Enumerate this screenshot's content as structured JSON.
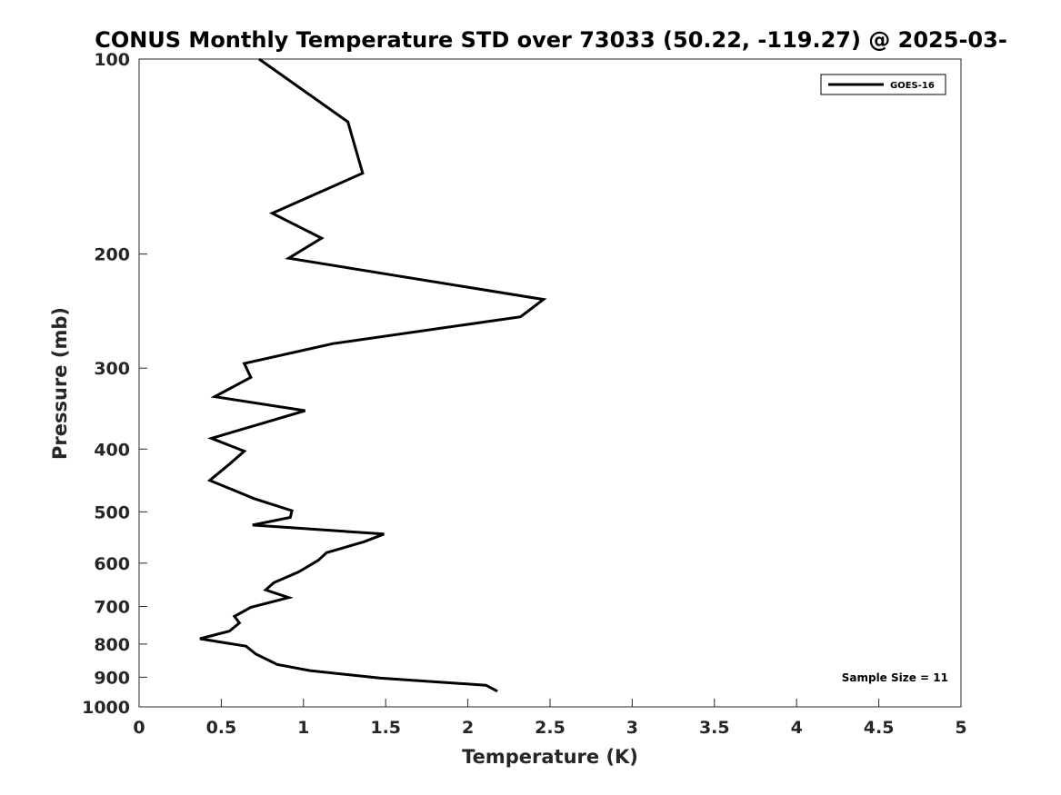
{
  "chart_data": {
    "type": "line",
    "title": "CONUS Monthly Temperature STD over 73033 (50.22, -119.27) @ 2025-03-",
    "xlabel": "Temperature (K)",
    "ylabel": "Pressure (mb)",
    "xlim": [
      0,
      5
    ],
    "ylim": [
      100,
      1000
    ],
    "y_scale": "log",
    "y_reversed": true,
    "x_ticks": [
      "0",
      "0.5",
      "1",
      "1.5",
      "2",
      "2.5",
      "3",
      "3.5",
      "4",
      "4.5",
      "5"
    ],
    "y_ticks": [
      "100",
      "200",
      "300",
      "400",
      "500",
      "600",
      "700",
      "800",
      "900",
      "1000"
    ],
    "grid": false,
    "legend_position": "top-right",
    "annotation": "Sample Size = 11",
    "series": [
      {
        "name": "GOES-16",
        "color": "#000000",
        "points": [
          [
            0.73,
            100
          ],
          [
            1.27,
            125
          ],
          [
            1.36,
            150
          ],
          [
            0.81,
            173
          ],
          [
            1.11,
            189
          ],
          [
            0.91,
            203
          ],
          [
            2.46,
            235
          ],
          [
            2.32,
            250
          ],
          [
            1.18,
            275
          ],
          [
            0.64,
            295
          ],
          [
            0.68,
            310
          ],
          [
            0.46,
            332
          ],
          [
            1.01,
            349
          ],
          [
            0.75,
            365
          ],
          [
            0.44,
            385
          ],
          [
            0.64,
            403
          ],
          [
            0.55,
            422
          ],
          [
            0.43,
            447
          ],
          [
            0.7,
            477
          ],
          [
            0.93,
            498
          ],
          [
            0.92,
            510
          ],
          [
            0.69,
            524
          ],
          [
            1.49,
            541
          ],
          [
            1.37,
            556
          ],
          [
            1.14,
            578
          ],
          [
            1.09,
            594
          ],
          [
            0.97,
            619
          ],
          [
            0.82,
            643
          ],
          [
            0.77,
            660
          ],
          [
            0.91,
            678
          ],
          [
            0.68,
            702
          ],
          [
            0.58,
            725
          ],
          [
            0.61,
            742
          ],
          [
            0.55,
            764
          ],
          [
            0.37,
            785
          ],
          [
            0.65,
            806
          ],
          [
            0.71,
            829
          ],
          [
            0.79,
            848
          ],
          [
            0.84,
            860
          ],
          [
            1.04,
            879
          ],
          [
            1.47,
            903
          ],
          [
            2.11,
            926
          ],
          [
            2.18,
            946
          ]
        ]
      }
    ]
  }
}
